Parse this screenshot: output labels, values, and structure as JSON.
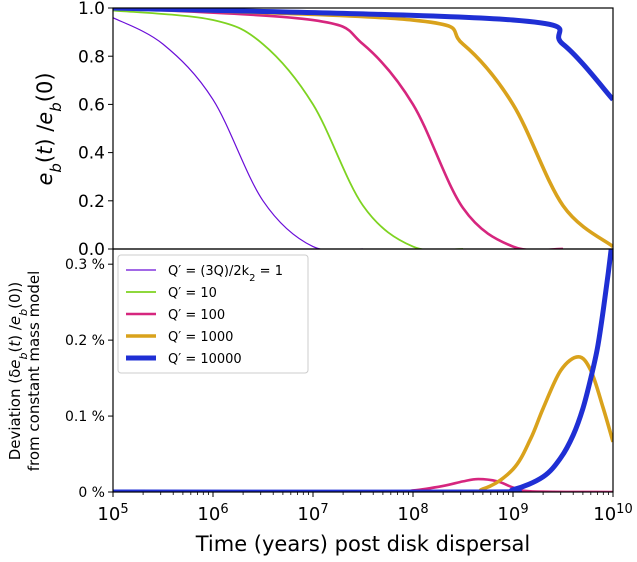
{
  "chart_data": [
    {
      "type": "line",
      "panel": "top",
      "ylabel": "e_b(t) /e_b(0)",
      "xscale": "log",
      "xlim": [
        100000,
        10000000000
      ],
      "ylim": [
        0.0,
        1.0
      ],
      "y_ticks": [
        {
          "value": 0.0,
          "label": "0.0"
        },
        {
          "value": 0.2,
          "label": "0.2"
        },
        {
          "value": 0.4,
          "label": "0.4"
        },
        {
          "value": 0.6,
          "label": "0.6"
        },
        {
          "value": 0.8,
          "label": "0.8"
        },
        {
          "value": 1.0,
          "label": "1.0"
        }
      ],
      "series": [
        {
          "name": "Q' = (3Q)/2k_2 = 1",
          "color": "#6a0dd8",
          "x": [
            100000,
            316228,
            1000000,
            3162278,
            10000000,
            31622777
          ],
          "y": [
            0.96,
            0.85,
            0.62,
            0.2,
            0.01,
            0.0
          ]
        },
        {
          "name": "Q' = 10",
          "color": "#7ed321",
          "x": [
            100000,
            1000000,
            3162278,
            10000000,
            31622777,
            100000000,
            316227766
          ],
          "y": [
            0.99,
            0.95,
            0.85,
            0.6,
            0.18,
            0.01,
            0.0
          ]
        },
        {
          "name": "Q' = 100",
          "color": "#d6267e",
          "x": [
            100000,
            10000000,
            31622777,
            100000000,
            316227766,
            1000000000,
            3162277660
          ],
          "y": [
            1.0,
            0.95,
            0.85,
            0.6,
            0.17,
            0.01,
            0.0
          ]
        },
        {
          "name": "Q' = 1000",
          "color": "#d9a21c",
          "x": [
            100000,
            100000000,
            316227766,
            1000000000,
            3162277660,
            10000000000
          ],
          "y": [
            1.0,
            0.95,
            0.85,
            0.6,
            0.18,
            0.01
          ]
        },
        {
          "name": "Q' = 10000",
          "color": "#1f2fd4",
          "x": [
            100000,
            1000000000,
            3162277660,
            10000000000
          ],
          "y": [
            1.0,
            0.95,
            0.85,
            0.62
          ]
        }
      ]
    },
    {
      "type": "line",
      "panel": "bottom",
      "ylabel": "Deviation (δe_b(t) /e_b(0)) from constant mass model",
      "xlabel": "Time (years) post disk dispersal",
      "xscale": "log",
      "xlim": [
        100000,
        10000000000
      ],
      "ylim": [
        0.0,
        0.32
      ],
      "x_ticks": [
        {
          "value": 100000,
          "base": "10",
          "exp": "5"
        },
        {
          "value": 1000000,
          "base": "10",
          "exp": "6"
        },
        {
          "value": 10000000,
          "base": "10",
          "exp": "7"
        },
        {
          "value": 100000000,
          "base": "10",
          "exp": "8"
        },
        {
          "value": 1000000000,
          "base": "10",
          "exp": "9"
        },
        {
          "value": 10000000000,
          "base": "10",
          "exp": "10"
        }
      ],
      "y_ticks": [
        {
          "value": 0.0,
          "label": "0 %"
        },
        {
          "value": 0.1,
          "label": "0.1 %"
        },
        {
          "value": 0.2,
          "label": "0.2 %"
        },
        {
          "value": 0.3,
          "label": "0.3 %"
        }
      ],
      "legend": {
        "position": "upper-left"
      },
      "series": [
        {
          "name": "Q' = (3Q)/2k_2 = 1",
          "color": "#6a0dd8",
          "x": [
            100000,
            10000000000
          ],
          "y": [
            0.0,
            0.0
          ]
        },
        {
          "name": "Q' = 10",
          "color": "#7ed321",
          "x": [
            100000,
            10000000,
            31622777,
            100000000,
            316227766,
            10000000000
          ],
          "y": [
            0.0,
            0.0,
            0.0005,
            0.001,
            0.0003,
            0.0
          ]
        },
        {
          "name": "Q' = 100",
          "color": "#d6267e",
          "x": [
            100000,
            50000000,
            100000000,
            200000000,
            316227766,
            450000000,
            700000000,
            1000000000,
            1500000000,
            10000000000
          ],
          "y": [
            0.0,
            0.0,
            0.002,
            0.008,
            0.014,
            0.017,
            0.014,
            0.006,
            0.001,
            0.0
          ]
        },
        {
          "name": "Q' = 1000",
          "color": "#d9a21c",
          "x": [
            100000,
            200000000,
            500000000,
            1000000000,
            1500000000,
            2000000000,
            3000000000,
            4500000000,
            6000000000,
            8000000000,
            10000000000
          ],
          "y": [
            0.0,
            0.0,
            0.004,
            0.03,
            0.07,
            0.11,
            0.16,
            0.178,
            0.16,
            0.11,
            0.066
          ]
        },
        {
          "name": "Q' = 10000",
          "color": "#1f2fd4",
          "x": [
            100000,
            500000000,
            1000000000,
            2000000000,
            3000000000,
            4000000000,
            5000000000,
            6000000000,
            7000000000,
            8000000000,
            9000000000,
            10000000000
          ],
          "y": [
            0.0,
            0.0,
            0.003,
            0.02,
            0.045,
            0.075,
            0.11,
            0.15,
            0.19,
            0.24,
            0.29,
            0.34
          ]
        }
      ]
    }
  ],
  "legend_entries": [
    {
      "label_html": "Q′ = (3Q)/2k<tspan baseline-shift=\"sub\" font-size=\"10\">2</tspan> = 1",
      "color": "#6a0dd8",
      "width": 1.2
    },
    {
      "label_html": "Q′ = 10",
      "color": "#7ed321",
      "width": 1.8
    },
    {
      "label_html": "Q′ = 100",
      "color": "#d6267e",
      "width": 2.6
    },
    {
      "label_html": "Q′ = 1000",
      "color": "#d9a21c",
      "width": 3.6
    },
    {
      "label_html": "Q′ = 10000",
      "color": "#1f2fd4",
      "width": 5
    }
  ]
}
